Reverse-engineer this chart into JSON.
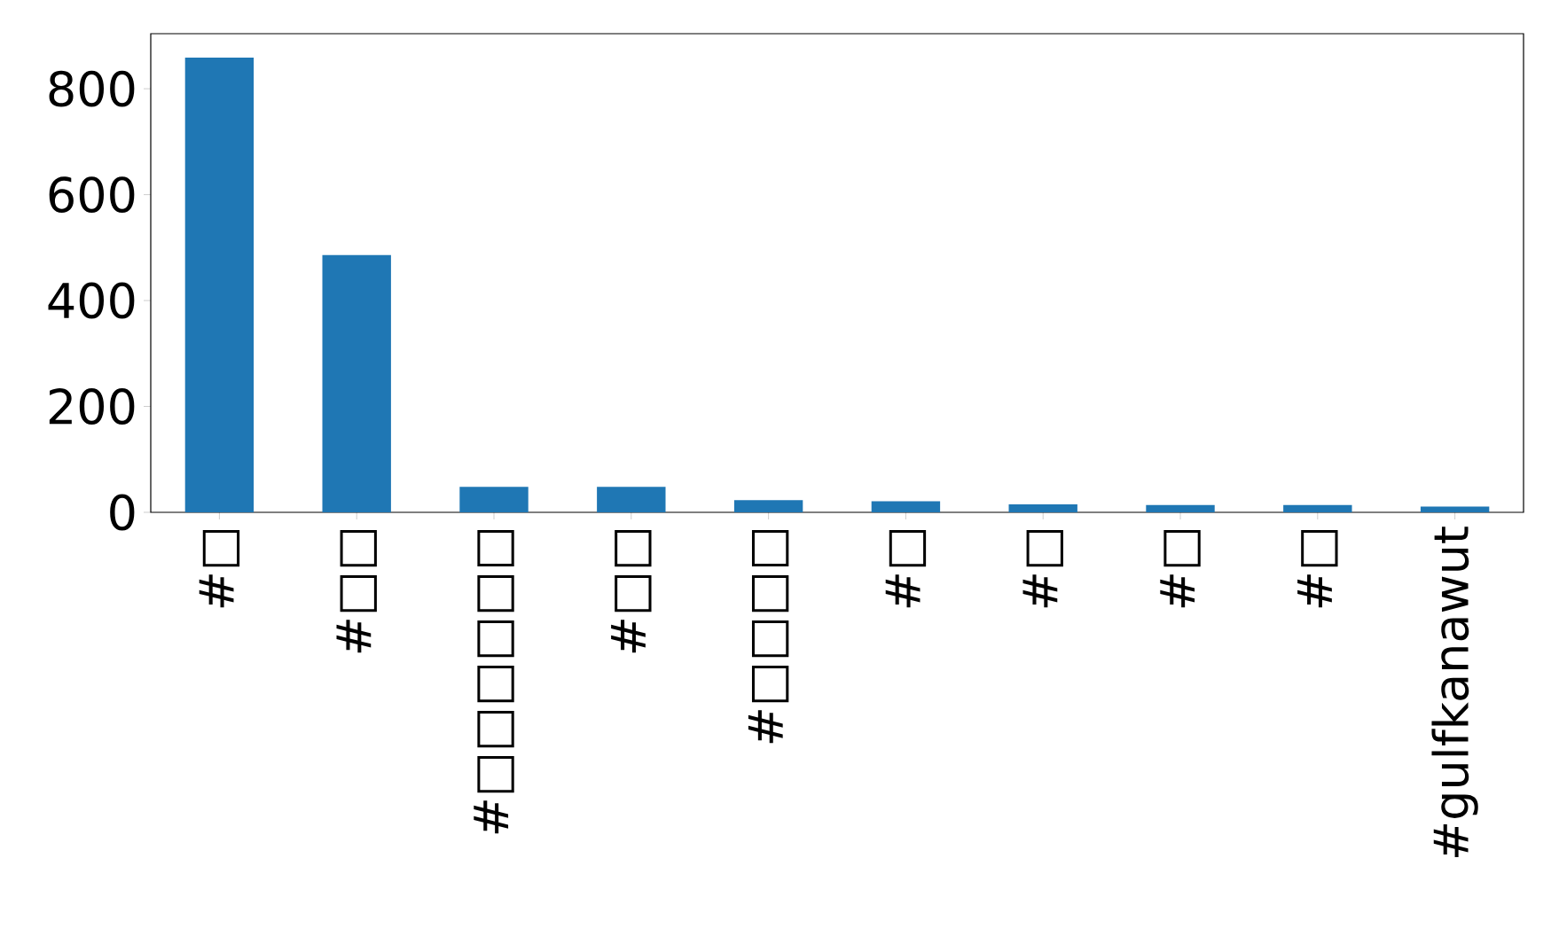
{
  "chart_data": {
    "type": "bar",
    "categories": [
      "#□",
      "#□□",
      "#□□□□□□",
      "#□□",
      "#□□□□",
      "#□",
      "#□",
      "#□",
      "#□",
      "#gulfkanawut"
    ],
    "values": [
      859,
      486,
      48,
      48,
      23,
      21,
      15,
      14,
      14,
      11
    ],
    "color": "#1f77b4",
    "ylim": [
      0,
      904
    ],
    "yticks": [
      0,
      200,
      400,
      600,
      800
    ],
    "grid": false
  }
}
